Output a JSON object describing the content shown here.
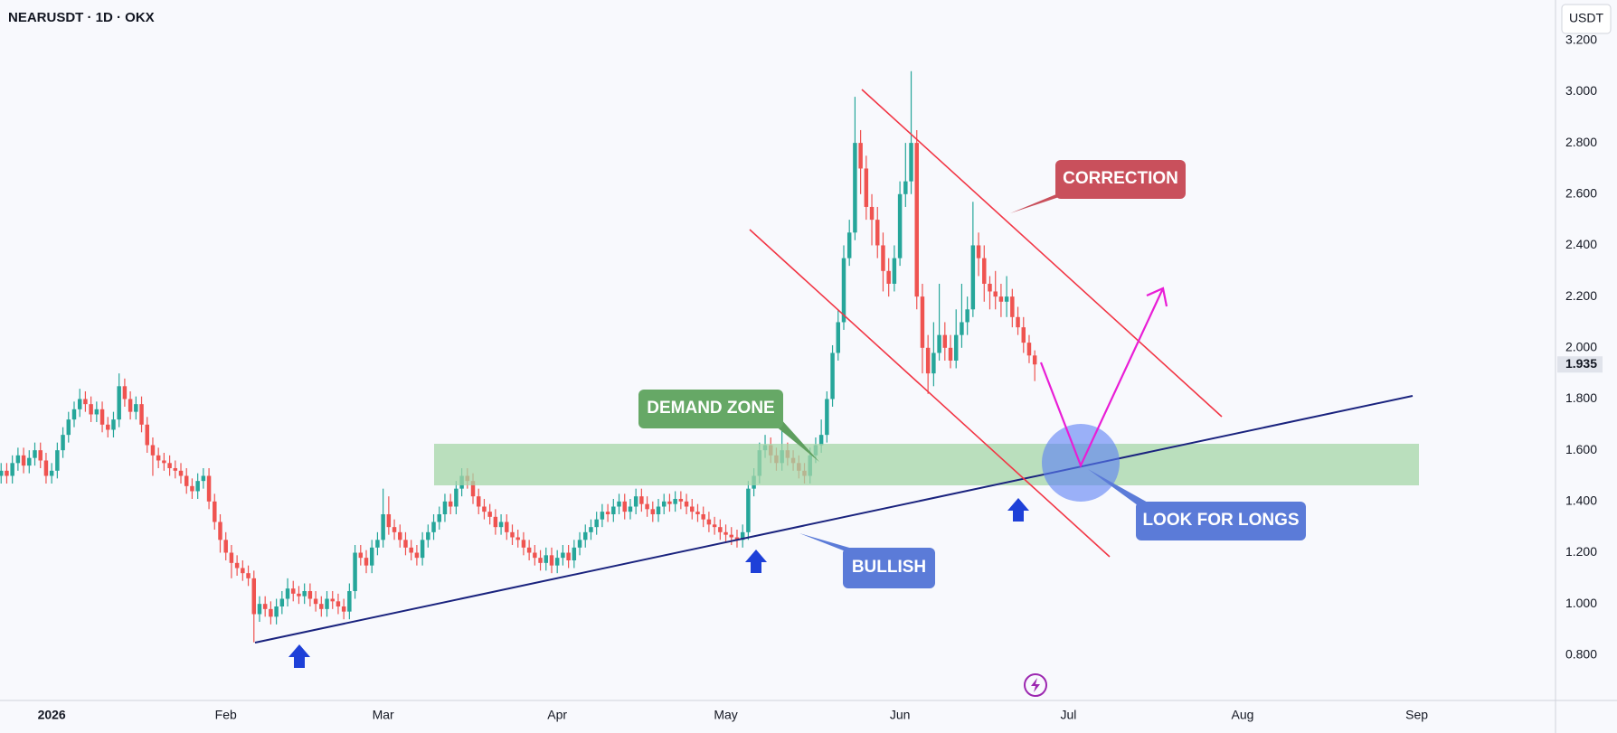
{
  "chart_data": {
    "type": "candlestick",
    "title": "NEARUSDT · 1D · OKX",
    "currency": "USDT",
    "up_color": "#26a69a",
    "down_color": "#ef5350",
    "grid": false,
    "annotations": [
      "CORRECTION",
      "DEMAND ZONE",
      "LOOK FOR LONGS",
      "BULLISH"
    ],
    "xlim": [
      -0.2,
      276.7
    ],
    "xticks": [
      {
        "value": 9,
        "label": "2026"
      },
      {
        "value": 40,
        "label": "Feb"
      },
      {
        "value": 68,
        "label": "Mar"
      },
      {
        "value": 99,
        "label": "Apr"
      },
      {
        "value": 129,
        "label": "May"
      },
      {
        "value": 160,
        "label": "Jun"
      },
      {
        "value": 190,
        "label": "Jul"
      },
      {
        "value": 221,
        "label": "Aug"
      },
      {
        "value": 252,
        "label": "Sep"
      }
    ],
    "ylim": [
      0.623,
      3.358
    ],
    "yticks": [
      {
        "value": 0.8,
        "label": "0.800"
      },
      {
        "value": 1.0,
        "label": "1.000"
      },
      {
        "value": 1.2,
        "label": "1.200"
      },
      {
        "value": 1.4,
        "label": "1.400"
      },
      {
        "value": 1.6,
        "label": "1.600"
      },
      {
        "value": 1.8,
        "label": "1.800"
      },
      {
        "value": 2.0,
        "label": "2.000"
      },
      {
        "value": 2.2,
        "label": "2.200"
      },
      {
        "value": 2.4,
        "label": "2.400"
      },
      {
        "value": 2.6,
        "label": "2.600"
      },
      {
        "value": 2.8,
        "label": "2.800"
      },
      {
        "value": 3.0,
        "label": "3.000"
      },
      {
        "value": 3.2,
        "label": "3.200"
      }
    ],
    "open": [
      1.5,
      1.52,
      1.5,
      1.55,
      1.58,
      1.54,
      1.57,
      1.6,
      1.56,
      1.5,
      1.52,
      1.6,
      1.66,
      1.72,
      1.76,
      1.8,
      1.78,
      1.74,
      1.76,
      1.7,
      1.68,
      1.72,
      1.85,
      1.8,
      1.75,
      1.78,
      1.7,
      1.62,
      1.58,
      1.56,
      1.55,
      1.53,
      1.52,
      1.5,
      1.46,
      1.44,
      1.48,
      1.5,
      1.4,
      1.32,
      1.25,
      1.2,
      1.16,
      1.14,
      1.12,
      1.1,
      0.96,
      1.0,
      0.98,
      0.95,
      0.99,
      1.02,
      1.06,
      1.04,
      1.03,
      1.05,
      1.02,
      1.0,
      0.98,
      1.02,
      1.01,
      0.99,
      0.97,
      1.05,
      1.2,
      1.18,
      1.15,
      1.22,
      1.25,
      1.35,
      1.3,
      1.28,
      1.25,
      1.22,
      1.2,
      1.18,
      1.25,
      1.28,
      1.32,
      1.35,
      1.4,
      1.38,
      1.45,
      1.5,
      1.48,
      1.42,
      1.38,
      1.36,
      1.34,
      1.3,
      1.32,
      1.28,
      1.26,
      1.25,
      1.22,
      1.2,
      1.18,
      1.16,
      1.19,
      1.15,
      1.18,
      1.2,
      1.17,
      1.22,
      1.25,
      1.28,
      1.3,
      1.33,
      1.36,
      1.35,
      1.38,
      1.4,
      1.36,
      1.38,
      1.42,
      1.39,
      1.37,
      1.35,
      1.38,
      1.4,
      1.39,
      1.41,
      1.4,
      1.38,
      1.36,
      1.35,
      1.33,
      1.31,
      1.3,
      1.28,
      1.27,
      1.26,
      1.25,
      1.28,
      1.45,
      1.5,
      1.6,
      1.62,
      1.58,
      1.55,
      1.6,
      1.57,
      1.55,
      1.52,
      1.5,
      1.58,
      1.62,
      1.66,
      1.8,
      1.98,
      2.1,
      2.35,
      2.45,
      2.8,
      2.7,
      2.55,
      2.5,
      2.4,
      2.3,
      2.25,
      2.35,
      2.6,
      2.65,
      2.8,
      2.2,
      2.0,
      1.9,
      1.98,
      2.05,
      2.0,
      1.95,
      2.05,
      2.1,
      2.15,
      2.4,
      2.35,
      2.25,
      2.22,
      2.2,
      2.18,
      2.2,
      2.12,
      2.08,
      2.02,
      1.97
    ],
    "high": [
      1.55,
      1.55,
      1.58,
      1.61,
      1.61,
      1.6,
      1.63,
      1.63,
      1.59,
      1.55,
      1.63,
      1.69,
      1.75,
      1.79,
      1.84,
      1.83,
      1.81,
      1.79,
      1.79,
      1.73,
      1.75,
      1.9,
      1.88,
      1.83,
      1.81,
      1.81,
      1.73,
      1.65,
      1.61,
      1.59,
      1.58,
      1.56,
      1.55,
      1.53,
      1.49,
      1.51,
      1.53,
      1.53,
      1.43,
      1.35,
      1.28,
      1.23,
      1.19,
      1.17,
      1.15,
      1.13,
      1.03,
      1.03,
      1.01,
      1.02,
      1.05,
      1.1,
      1.09,
      1.07,
      1.08,
      1.08,
      1.05,
      1.03,
      1.05,
      1.05,
      1.04,
      1.02,
      1.08,
      1.23,
      1.23,
      1.21,
      1.25,
      1.28,
      1.45,
      1.42,
      1.33,
      1.31,
      1.28,
      1.25,
      1.23,
      1.28,
      1.31,
      1.35,
      1.38,
      1.43,
      1.43,
      1.48,
      1.53,
      1.53,
      1.51,
      1.45,
      1.41,
      1.39,
      1.37,
      1.35,
      1.35,
      1.31,
      1.29,
      1.28,
      1.25,
      1.23,
      1.21,
      1.22,
      1.22,
      1.21,
      1.23,
      1.23,
      1.25,
      1.28,
      1.31,
      1.33,
      1.36,
      1.39,
      1.39,
      1.41,
      1.43,
      1.43,
      1.41,
      1.45,
      1.45,
      1.42,
      1.4,
      1.41,
      1.43,
      1.43,
      1.44,
      1.44,
      1.43,
      1.41,
      1.39,
      1.38,
      1.36,
      1.34,
      1.33,
      1.31,
      1.3,
      1.29,
      1.31,
      1.48,
      1.53,
      1.63,
      1.66,
      1.65,
      1.61,
      1.68,
      1.63,
      1.6,
      1.58,
      1.55,
      1.61,
      1.65,
      1.72,
      1.83,
      2.01,
      2.15,
      2.4,
      2.5,
      2.98,
      2.85,
      2.75,
      2.6,
      2.55,
      2.45,
      2.35,
      2.4,
      2.65,
      2.8,
      3.08,
      2.85,
      2.25,
      2.05,
      2.1,
      2.25,
      2.1,
      2.05,
      2.15,
      2.25,
      2.2,
      2.57,
      2.45,
      2.4,
      2.28,
      2.3,
      2.25,
      2.28,
      2.23,
      2.16,
      2.12,
      2.05,
      1.99
    ],
    "low": [
      1.47,
      1.47,
      1.47,
      1.52,
      1.51,
      1.51,
      1.54,
      1.53,
      1.47,
      1.47,
      1.49,
      1.57,
      1.63,
      1.69,
      1.73,
      1.75,
      1.71,
      1.71,
      1.67,
      1.65,
      1.65,
      1.69,
      1.77,
      1.72,
      1.72,
      1.67,
      1.59,
      1.5,
      1.53,
      1.52,
      1.5,
      1.49,
      1.47,
      1.43,
      1.41,
      1.41,
      1.45,
      1.37,
      1.29,
      1.2,
      1.17,
      1.1,
      1.11,
      1.09,
      1.07,
      0.85,
      0.93,
      0.95,
      0.92,
      0.92,
      0.96,
      0.99,
      1.01,
      1.0,
      1.0,
      0.99,
      0.97,
      0.95,
      0.95,
      0.98,
      0.96,
      0.94,
      0.94,
      1.02,
      1.15,
      1.12,
      1.12,
      1.19,
      1.22,
      1.27,
      1.25,
      1.22,
      1.19,
      1.17,
      1.15,
      1.15,
      1.22,
      1.25,
      1.29,
      1.32,
      1.35,
      1.35,
      1.42,
      1.45,
      1.39,
      1.35,
      1.33,
      1.31,
      1.27,
      1.27,
      1.25,
      1.23,
      1.22,
      1.19,
      1.17,
      1.15,
      1.13,
      1.13,
      1.12,
      1.12,
      1.15,
      1.14,
      1.14,
      1.19,
      1.22,
      1.25,
      1.27,
      1.3,
      1.32,
      1.32,
      1.35,
      1.33,
      1.33,
      1.35,
      1.36,
      1.34,
      1.32,
      1.32,
      1.35,
      1.36,
      1.36,
      1.37,
      1.35,
      1.33,
      1.32,
      1.3,
      1.28,
      1.27,
      1.25,
      1.24,
      1.23,
      1.22,
      1.22,
      1.25,
      1.42,
      1.47,
      1.57,
      1.55,
      1.52,
      1.52,
      1.54,
      1.52,
      1.49,
      1.47,
      1.47,
      1.55,
      1.59,
      1.63,
      1.77,
      1.95,
      2.07,
      2.32,
      2.42,
      2.6,
      2.5,
      2.4,
      2.35,
      2.22,
      2.2,
      2.22,
      2.32,
      2.55,
      2.6,
      2.15,
      1.9,
      1.82,
      1.85,
      1.95,
      1.95,
      1.92,
      1.92,
      2.0,
      2.05,
      2.12,
      2.28,
      2.18,
      2.15,
      2.15,
      2.12,
      2.12,
      2.08,
      2.05,
      1.98,
      1.94,
      1.87
    ],
    "close": [
      1.52,
      1.5,
      1.55,
      1.58,
      1.54,
      1.57,
      1.6,
      1.56,
      1.5,
      1.52,
      1.6,
      1.66,
      1.72,
      1.76,
      1.8,
      1.78,
      1.74,
      1.76,
      1.7,
      1.68,
      1.72,
      1.85,
      1.8,
      1.75,
      1.78,
      1.7,
      1.62,
      1.58,
      1.56,
      1.55,
      1.53,
      1.52,
      1.5,
      1.46,
      1.44,
      1.48,
      1.5,
      1.4,
      1.32,
      1.25,
      1.2,
      1.16,
      1.14,
      1.12,
      1.1,
      0.96,
      1.0,
      0.98,
      0.95,
      0.99,
      1.02,
      1.06,
      1.04,
      1.03,
      1.05,
      1.02,
      1.0,
      0.98,
      1.02,
      1.01,
      0.99,
      0.97,
      1.05,
      1.2,
      1.18,
      1.15,
      1.22,
      1.25,
      1.35,
      1.3,
      1.28,
      1.25,
      1.22,
      1.2,
      1.18,
      1.25,
      1.28,
      1.32,
      1.35,
      1.4,
      1.38,
      1.45,
      1.5,
      1.48,
      1.42,
      1.38,
      1.36,
      1.34,
      1.3,
      1.32,
      1.28,
      1.26,
      1.25,
      1.22,
      1.2,
      1.18,
      1.16,
      1.19,
      1.15,
      1.18,
      1.2,
      1.17,
      1.22,
      1.25,
      1.28,
      1.3,
      1.33,
      1.36,
      1.35,
      1.38,
      1.4,
      1.36,
      1.38,
      1.42,
      1.39,
      1.37,
      1.35,
      1.38,
      1.4,
      1.39,
      1.41,
      1.4,
      1.38,
      1.36,
      1.35,
      1.33,
      1.31,
      1.3,
      1.28,
      1.27,
      1.26,
      1.25,
      1.28,
      1.45,
      1.5,
      1.6,
      1.62,
      1.58,
      1.55,
      1.6,
      1.57,
      1.55,
      1.52,
      1.5,
      1.58,
      1.62,
      1.66,
      1.8,
      1.98,
      2.1,
      2.35,
      2.45,
      2.8,
      2.7,
      2.55,
      2.5,
      2.4,
      2.3,
      2.25,
      2.35,
      2.6,
      2.65,
      2.8,
      2.2,
      2.0,
      1.9,
      1.98,
      2.05,
      2.0,
      1.95,
      2.05,
      2.1,
      2.15,
      2.4,
      2.35,
      2.25,
      2.22,
      2.2,
      2.18,
      2.2,
      2.12,
      2.08,
      2.02,
      1.97,
      1.935
    ]
  }
}
